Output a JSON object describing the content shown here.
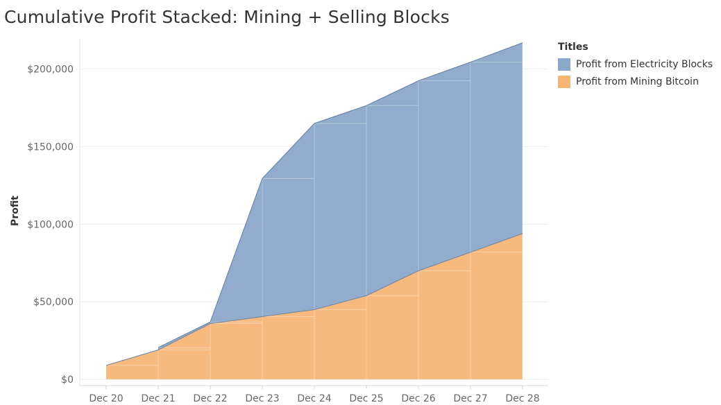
{
  "title": "Cumulative Profit Stacked: Mining + Selling Blocks",
  "legend": {
    "title": "Titles",
    "items": [
      {
        "label": "Profit from Electricity Blocks",
        "color": "#8ba8c9"
      },
      {
        "label": "Profit from Mining Bitcoin",
        "color": "#f6b577"
      }
    ]
  },
  "chart_data": {
    "type": "area",
    "stacked": true,
    "categories": [
      "Dec 20",
      "Dec 21",
      "Dec 22",
      "Dec 23",
      "Dec 24",
      "Dec 25",
      "Dec 26",
      "Dec 27",
      "Dec 28"
    ],
    "series": [
      {
        "name": "Profit from Mining Bitcoin",
        "color": "#f6b577",
        "values": [
          9000,
          19000,
          36000,
          40500,
          45000,
          54000,
          70000,
          82000,
          94000
        ]
      },
      {
        "name": "Profit from Electricity Blocks",
        "color": "#8ba8c9",
        "values": [
          null,
          1500,
          1000,
          89000,
          120000,
          122500,
          122500,
          122500,
          123000
        ]
      }
    ],
    "ylabel": "Profit",
    "xlabel": "",
    "ylim": [
      -4000,
      220000
    ],
    "yticks": [
      0,
      50000,
      100000,
      150000,
      200000
    ],
    "ytick_labels": [
      "$0",
      "$50,000",
      "$100,000",
      "$150,000",
      "$200,000"
    ],
    "grid": true
  }
}
